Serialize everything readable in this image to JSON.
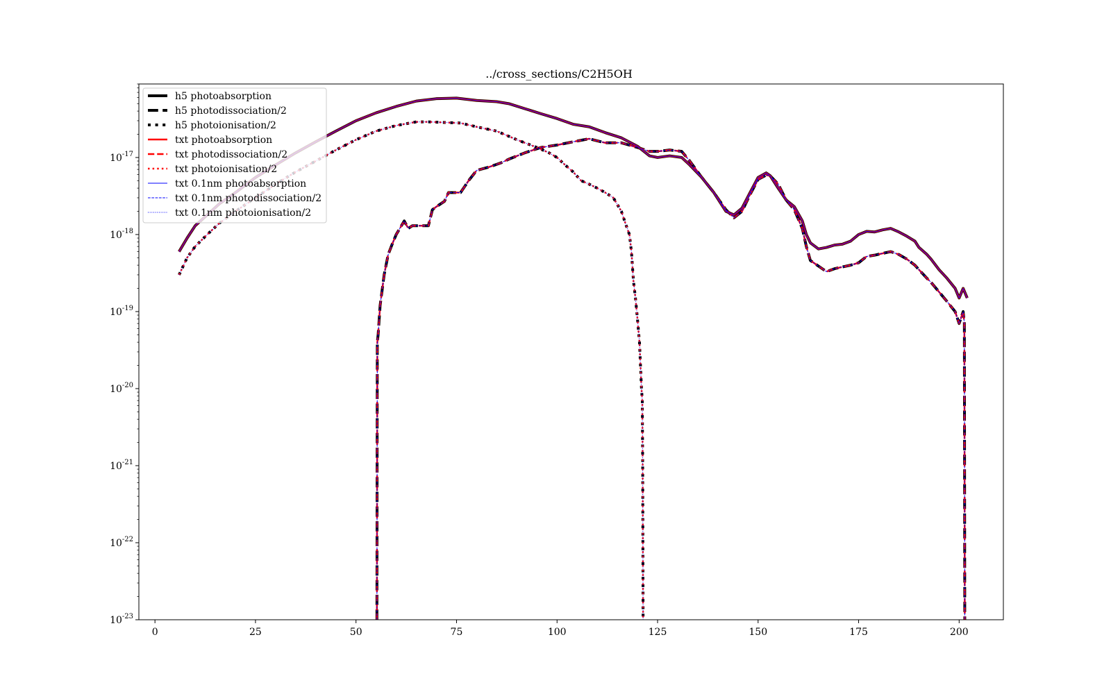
{
  "chart_data": {
    "type": "line",
    "title": "../cross_sections/C2H5OH",
    "xlabel": "",
    "ylabel": "",
    "xlim": [
      -4,
      211
    ],
    "ylim": [
      1e-23,
      9e-17
    ],
    "yscale": "log",
    "grid": false,
    "legend_position": "top-left",
    "x_ticks": [
      {
        "value": 0,
        "label": "0"
      },
      {
        "value": 25,
        "label": "25"
      },
      {
        "value": 50,
        "label": "50"
      },
      {
        "value": 75,
        "label": "75"
      },
      {
        "value": 100,
        "label": "100"
      },
      {
        "value": 125,
        "label": "125"
      },
      {
        "value": 150,
        "label": "150"
      },
      {
        "value": 175,
        "label": "175"
      },
      {
        "value": 200,
        "label": "200"
      }
    ],
    "y_ticks": [
      {
        "value": 1e-17,
        "base": "10",
        "exp": "-17"
      },
      {
        "value": 1e-18,
        "base": "10",
        "exp": "-18"
      },
      {
        "value": 1e-19,
        "base": "10",
        "exp": "-19"
      },
      {
        "value": 1e-20,
        "base": "10",
        "exp": "-20"
      },
      {
        "value": 1e-21,
        "base": "10",
        "exp": "-21"
      },
      {
        "value": 1e-22,
        "base": "10",
        "exp": "-22"
      },
      {
        "value": 1e-23,
        "base": "10",
        "exp": "-23"
      }
    ],
    "colors": {
      "h5": "#000000",
      "txt": "#ff0000",
      "txt_0_1nm": "#0000ff"
    },
    "series": [
      {
        "name": "h5 photoabsorption",
        "color": "#000000",
        "dash": "solid",
        "width": 4,
        "curve": "absorption"
      },
      {
        "name": "h5 photodissociation/2",
        "color": "#000000",
        "dash": "dashed",
        "width": 4,
        "curve": "dissociation"
      },
      {
        "name": "h5 photoionisation/2",
        "color": "#000000",
        "dash": "dotted",
        "width": 4,
        "curve": "ionisation"
      },
      {
        "name": "txt photoabsorption",
        "color": "#ff0000",
        "dash": "solid",
        "width": 2.5,
        "curve": "absorption"
      },
      {
        "name": "txt photodissociation/2",
        "color": "#ff0000",
        "dash": "dashed",
        "width": 2.5,
        "curve": "dissociation"
      },
      {
        "name": "txt photoionisation/2",
        "color": "#ff0000",
        "dash": "dotted",
        "width": 2.5,
        "curve": "ionisation"
      },
      {
        "name": "txt 0.1nm photoabsorption",
        "color": "#0000ff",
        "dash": "solid",
        "width": 1,
        "curve": "absorption"
      },
      {
        "name": "txt 0.1nm photodissociation/2",
        "color": "#0000ff",
        "dash": "dashed",
        "width": 1,
        "curve": "dissociation"
      },
      {
        "name": "txt 0.1nm photoionisation/2",
        "color": "#0000ff",
        "dash": "dotted",
        "width": 1,
        "curve": "ionisation"
      }
    ],
    "curves": {
      "absorption": {
        "x": [
          6,
          8,
          10,
          13,
          16,
          20,
          25,
          30,
          35,
          40,
          45,
          50,
          55,
          60,
          65,
          70,
          75,
          80,
          85,
          88,
          92,
          96,
          100,
          104,
          108,
          112,
          116,
          120,
          123,
          125,
          128,
          131,
          133,
          136,
          139,
          142,
          144,
          146,
          148,
          150,
          152,
          153,
          155,
          157,
          159,
          161,
          162,
          163,
          165,
          167,
          169,
          171,
          173,
          175,
          177,
          179,
          181,
          183,
          185,
          187,
          189,
          190,
          192,
          193,
          195,
          197,
          199,
          200,
          201,
          202
        ],
        "y": [
          6e-19,
          9e-19,
          1.3e-18,
          1.8e-18,
          2.5e-18,
          3.5e-18,
          5.5e-18,
          8e-18,
          1.15e-17,
          1.6e-17,
          2.2e-17,
          3e-17,
          3.8e-17,
          4.6e-17,
          5.4e-17,
          5.8e-17,
          5.9e-17,
          5.5e-17,
          5.3e-17,
          5e-17,
          4.3e-17,
          3.7e-17,
          3.2e-17,
          2.7e-17,
          2.5e-17,
          2.1e-17,
          1.8e-17,
          1.4e-17,
          1.05e-17,
          1e-17,
          1.05e-17,
          1e-17,
          8e-18,
          5.5e-18,
          3.5e-18,
          2e-18,
          1.8e-18,
          2.2e-18,
          3.5e-18,
          5.5e-18,
          6.3e-18,
          5.8e-18,
          4e-18,
          2.8e-18,
          2.3e-18,
          1.5e-18,
          1e-18,
          7.8e-19,
          6.5e-19,
          6.8e-19,
          7.3e-19,
          7.5e-19,
          8.2e-19,
          1e-18,
          1.1e-18,
          1.08e-18,
          1.15e-18,
          1.2e-18,
          1.08e-18,
          9.5e-19,
          8.2e-19,
          6.8e-19,
          5.5e-19,
          4.8e-19,
          3.5e-19,
          2.7e-19,
          2e-19,
          1.5e-19,
          2e-19,
          1.5e-19
        ]
      },
      "dissociation": {
        "x": [
          55.2,
          55.25,
          55.3,
          55.5,
          56,
          57,
          58,
          59,
          60,
          62,
          63,
          64,
          66,
          68,
          69,
          70,
          72,
          73,
          74,
          76,
          78,
          80,
          83,
          86,
          88,
          92,
          96,
          100,
          104,
          108,
          112,
          116,
          120,
          123,
          125,
          128,
          131,
          133,
          136,
          139,
          142,
          144,
          146,
          148,
          150,
          152,
          153,
          155,
          157,
          159,
          161,
          162,
          163,
          165,
          167,
          169,
          171,
          173,
          175,
          177,
          179,
          181,
          183,
          185,
          187,
          189,
          190,
          192,
          193,
          195,
          197,
          199,
          200,
          201,
          201.3,
          201.35,
          201.4
        ],
        "y": [
          1e-23,
          1e-21,
          4e-20,
          5e-20,
          1.2e-19,
          3e-19,
          5.5e-19,
          7.5e-19,
          1e-18,
          1.5e-18,
          1.2e-18,
          1.3e-18,
          1.3e-18,
          1.3e-18,
          2.1e-18,
          2.3e-18,
          2.7e-18,
          3.5e-18,
          3.5e-18,
          3.5e-18,
          5e-18,
          6.8e-18,
          7.5e-18,
          8.5e-18,
          9.5e-18,
          1.15e-17,
          1.35e-17,
          1.45e-17,
          1.6e-17,
          1.75e-17,
          1.55e-17,
          1.55e-17,
          1.35e-17,
          1.2e-17,
          1.2e-17,
          1.25e-17,
          1.2e-17,
          9e-18,
          5.5e-18,
          3.5e-18,
          2.1e-18,
          1.65e-18,
          2e-18,
          3.3e-18,
          5.2e-18,
          5.9e-18,
          5.8e-18,
          4.5e-18,
          2.8e-18,
          2.1e-18,
          1.2e-18,
          7e-19,
          4.6e-19,
          3.9e-19,
          3.3e-19,
          3.6e-19,
          3.8e-19,
          4e-19,
          4.3e-19,
          5.2e-19,
          5.4e-19,
          5.7e-19,
          6e-19,
          5.5e-19,
          4.8e-19,
          4e-19,
          3.5e-19,
          2.7e-19,
          2.4e-19,
          1.8e-19,
          1.35e-19,
          1e-19,
          7e-20,
          1e-19,
          7e-20,
          1e-21,
          1e-23
        ]
      },
      "ionisation": {
        "x": [
          6,
          8,
          10,
          13,
          16,
          20,
          25,
          30,
          35,
          40,
          45,
          50,
          55,
          60,
          65,
          68,
          72,
          76,
          80,
          85,
          90,
          95,
          98,
          100,
          102,
          104,
          106,
          108,
          110,
          112,
          114,
          116,
          117,
          118,
          118.5,
          119,
          119.5,
          120,
          120.5,
          121,
          121.2,
          121.3,
          121.35,
          121.4
        ],
        "y": [
          3e-19,
          5e-19,
          7e-19,
          1e-18,
          1.4e-18,
          2e-18,
          3e-18,
          4.5e-18,
          6.5e-18,
          9e-18,
          1.25e-17,
          1.7e-17,
          2.2e-17,
          2.6e-17,
          2.9e-17,
          2.9e-17,
          2.85e-17,
          2.8e-17,
          2.5e-17,
          2.2e-17,
          1.7e-17,
          1.35e-17,
          1.15e-17,
          1e-17,
          8e-18,
          6.5e-18,
          5e-18,
          4.5e-18,
          4e-18,
          3.5e-18,
          3e-18,
          2e-18,
          1.4e-18,
          1e-18,
          6e-19,
          2.5e-19,
          1.5e-19,
          8e-20,
          4e-20,
          1e-20,
          7e-21,
          1e-21,
          1e-22,
          1e-23
        ]
      }
    }
  }
}
